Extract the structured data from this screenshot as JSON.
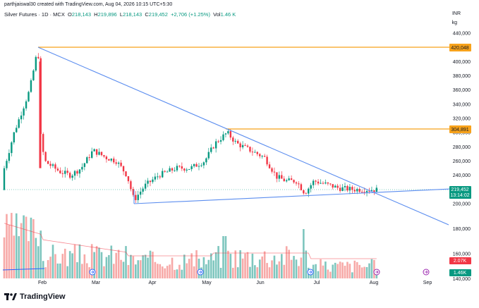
{
  "header": {
    "author_line": "parthjaiswal30 created with TradingView.com, Aug 04, 2026 10:15 UTC+5:30"
  },
  "legend": {
    "symbol": "Silver Futures · 1D · MCX",
    "open_label": "O",
    "open": "218,143",
    "high_label": "H",
    "high": "219,896",
    "low_label": "L",
    "low": "218,143",
    "close_label": "C",
    "close": "219,452",
    "change": "+2,706 (+1.25%)",
    "volume_label": "Vol",
    "volume": "1.46 K"
  },
  "axis": {
    "currency": "INR",
    "unit": "kg",
    "y_ticks": [
      "440,000",
      "400,000",
      "380,000",
      "360,000",
      "340,000",
      "320,000",
      "300,000",
      "280,000",
      "260,000",
      "240,000",
      "200,000",
      "180,000",
      "160,000",
      "140,000"
    ],
    "x_ticks": [
      "Feb",
      "Mar",
      "Apr",
      "May",
      "Jun",
      "Jul",
      "Aug",
      "Sep"
    ]
  },
  "badges": {
    "upper_line": "420,048",
    "middle_line": "304,891",
    "last_price": "219,452",
    "countdown": "13:14:02",
    "vol_ma": "2.07K",
    "volume": "1.46K"
  },
  "colors": {
    "up": "#089981",
    "down": "#f23645",
    "orange": "#f7a21b",
    "trendline": "#5b8def",
    "volume_up": "#7ec6be",
    "volume_down": "#f7a9a7"
  },
  "footer": {
    "brand": "TradingView"
  },
  "chart_data": {
    "type": "candlestick",
    "symbol": "Silver Futures, 1D, MCX",
    "currency": "INR",
    "unit": "kg",
    "ylim": [
      150000,
      450000
    ],
    "x_ticks": [
      "Feb",
      "Mar",
      "Apr",
      "May",
      "Jun",
      "Jul",
      "Aug",
      "Sep"
    ],
    "last_close": 219452,
    "horizontal_levels": [
      420048,
      304891
    ],
    "approx_close_path": [
      {
        "x": "Jan",
        "close": 250000
      },
      {
        "x": "late Jan",
        "close": 420048
      },
      {
        "x": "Feb",
        "close": 260000
      },
      {
        "x": "Mar",
        "close": 270000
      },
      {
        "x": "late Mar",
        "close": 205000
      },
      {
        "x": "Apr",
        "close": 240000
      },
      {
        "x": "May",
        "close": 300000
      },
      {
        "x": "Jun",
        "close": 240000
      },
      {
        "x": "Jul",
        "close": 220000
      },
      {
        "x": "Aug",
        "close": 219452
      }
    ]
  }
}
